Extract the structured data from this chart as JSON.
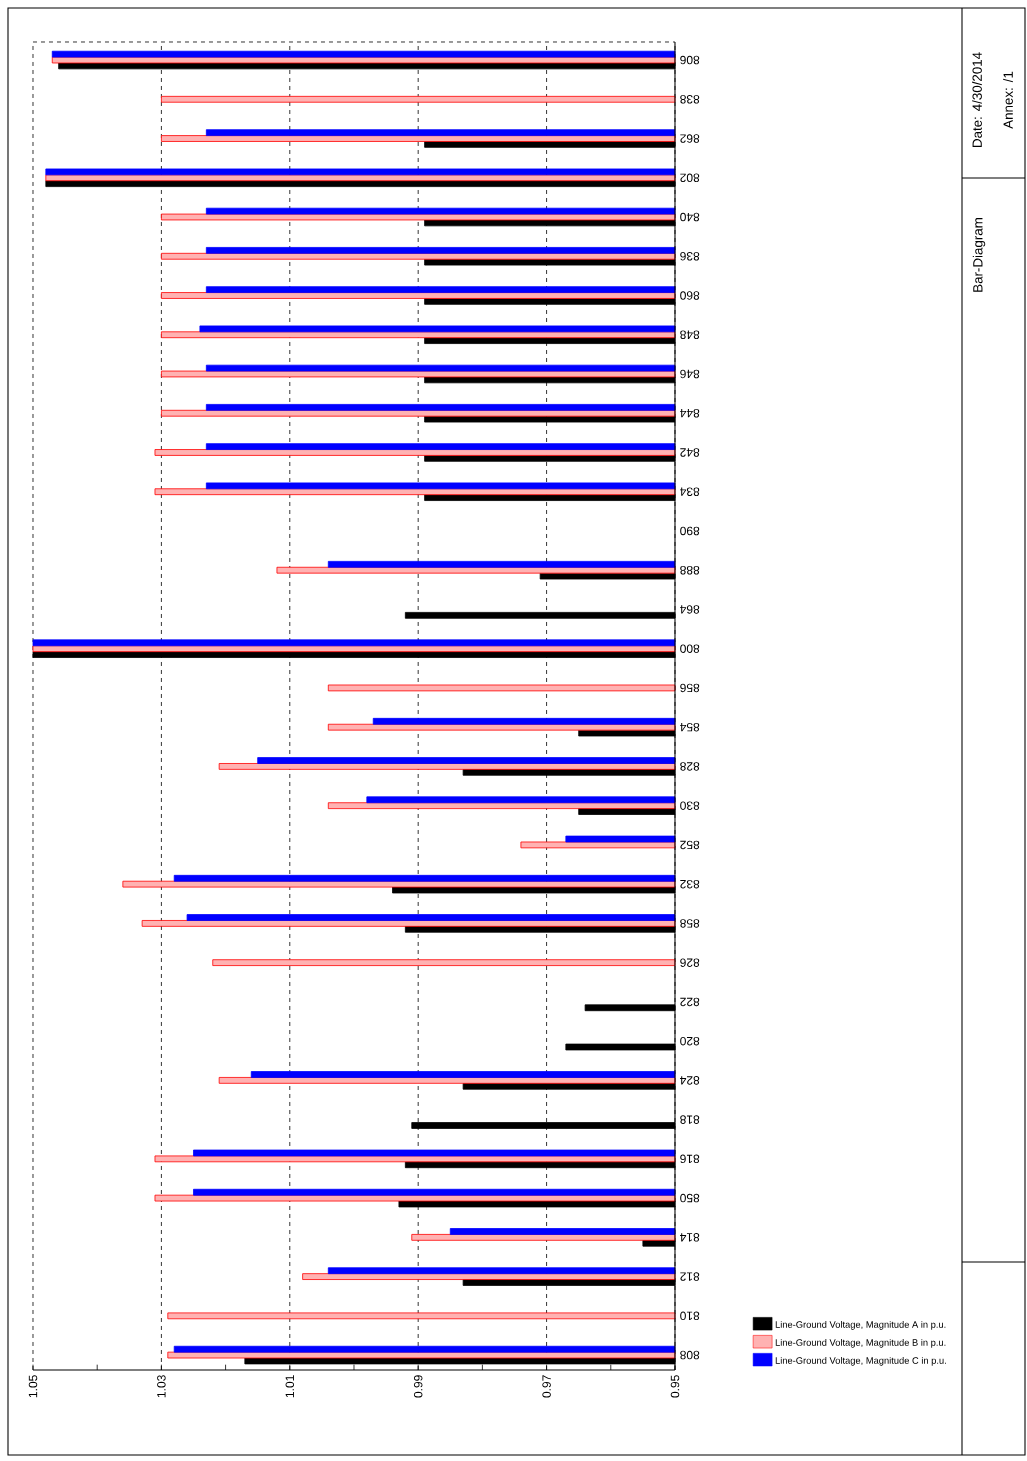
{
  "chart_data": {
    "type": "bar",
    "orientation": "horizontal",
    "title": "Bar-Diagram",
    "annotations": [
      "Date:  4/30/2014",
      "Annex:  /1"
    ],
    "categories": [
      "806",
      "838",
      "862",
      "802",
      "840",
      "836",
      "860",
      "848",
      "846",
      "844",
      "842",
      "834",
      "890",
      "888",
      "864",
      "800",
      "856",
      "854",
      "828",
      "830",
      "852",
      "832",
      "858",
      "826",
      "822",
      "820",
      "824",
      "818",
      "816",
      "850",
      "814",
      "812",
      "810",
      "808"
    ],
    "series": [
      {
        "name": "Line-Ground Voltage, Magnitude A in p.u.",
        "color": "#000000",
        "values": [
          1.046,
          null,
          0.989,
          1.048,
          0.989,
          0.989,
          0.989,
          0.989,
          0.989,
          0.989,
          0.989,
          0.989,
          null,
          0.971,
          0.992,
          1.05,
          null,
          0.965,
          0.983,
          0.965,
          null,
          0.994,
          0.992,
          null,
          0.964,
          0.967,
          0.983,
          0.991,
          0.992,
          0.993,
          0.955,
          0.983,
          null,
          1.017
        ]
      },
      {
        "name": "Line-Ground Voltage, Magnitude B in p.u.",
        "color": "#ff0000",
        "values": [
          1.047,
          1.03,
          1.03,
          1.048,
          1.03,
          1.03,
          1.03,
          1.03,
          1.03,
          1.03,
          1.031,
          1.031,
          null,
          1.012,
          null,
          1.05,
          1.004,
          1.004,
          1.021,
          1.004,
          0.974,
          1.036,
          1.033,
          1.022,
          null,
          null,
          1.021,
          null,
          1.031,
          1.031,
          0.991,
          1.008,
          1.029,
          1.029
        ]
      },
      {
        "name": "Line-Ground Voltage, Magnitude C in p.u.",
        "color": "#0000ff",
        "values": [
          1.047,
          null,
          1.023,
          1.048,
          1.023,
          1.023,
          1.023,
          1.024,
          1.023,
          1.023,
          1.023,
          1.023,
          null,
          1.004,
          null,
          1.05,
          null,
          0.997,
          1.015,
          0.998,
          0.967,
          1.028,
          1.026,
          null,
          null,
          null,
          1.016,
          null,
          1.025,
          1.025,
          0.985,
          1.004,
          null,
          1.028
        ]
      }
    ],
    "xlim": [
      1.05,
      0.95
    ],
    "xticks": [
      1.05,
      {
        "value": 1.04,
        "label": null
      },
      1.03,
      {
        "value": 1.02,
        "label": null
      },
      1.01,
      {
        "value": 1.0,
        "label": null
      },
      0.99,
      {
        "value": 0.98,
        "label": null
      },
      0.97,
      {
        "value": 0.96,
        "label": null
      },
      0.95
    ],
    "grid": "x",
    "legend": "bottom right"
  }
}
